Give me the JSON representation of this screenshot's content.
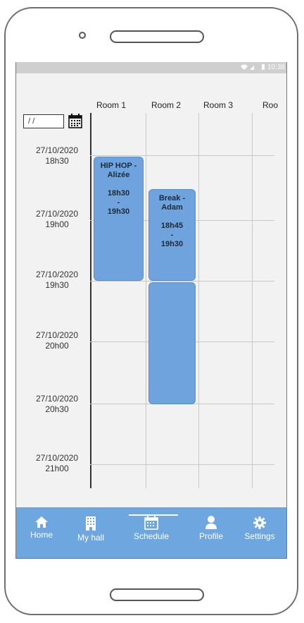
{
  "statusbar": {
    "time": "10:38",
    "icons": "wifi signal battery"
  },
  "date_input": {
    "value": "/ /"
  },
  "rooms": [
    "Room 1",
    "Room 2",
    "Room 3",
    "Roo"
  ],
  "time_slots": [
    {
      "date": "27/10/2020",
      "time": "18h30"
    },
    {
      "date": "27/10/2020",
      "time": "19h00"
    },
    {
      "date": "27/10/2020",
      "time": "19h30"
    },
    {
      "date": "27/10/2020",
      "time": "20h00"
    },
    {
      "date": "27/10/2020",
      "time": "20h30"
    },
    {
      "date": "27/10/2020",
      "time": "21h00"
    }
  ],
  "events": [
    {
      "title": "HIP HOP -",
      "subtitle": "Alizée",
      "start": "18h30",
      "sep": "-",
      "end": "19h30"
    },
    {
      "title": "Break -",
      "subtitle": "Adam",
      "start": "18h45",
      "sep": "-",
      "end": "19h30"
    }
  ],
  "nav": {
    "home": "Home",
    "hall": "My hall",
    "schedule": "Schedule",
    "profile": "Profile",
    "settings": "Settings",
    "active": "Schedule"
  },
  "colors": {
    "accent": "#6ea6df",
    "event": "#6fa3dd",
    "statusbar": "#cfcfcf",
    "screen_bg": "#f2f2f2"
  }
}
